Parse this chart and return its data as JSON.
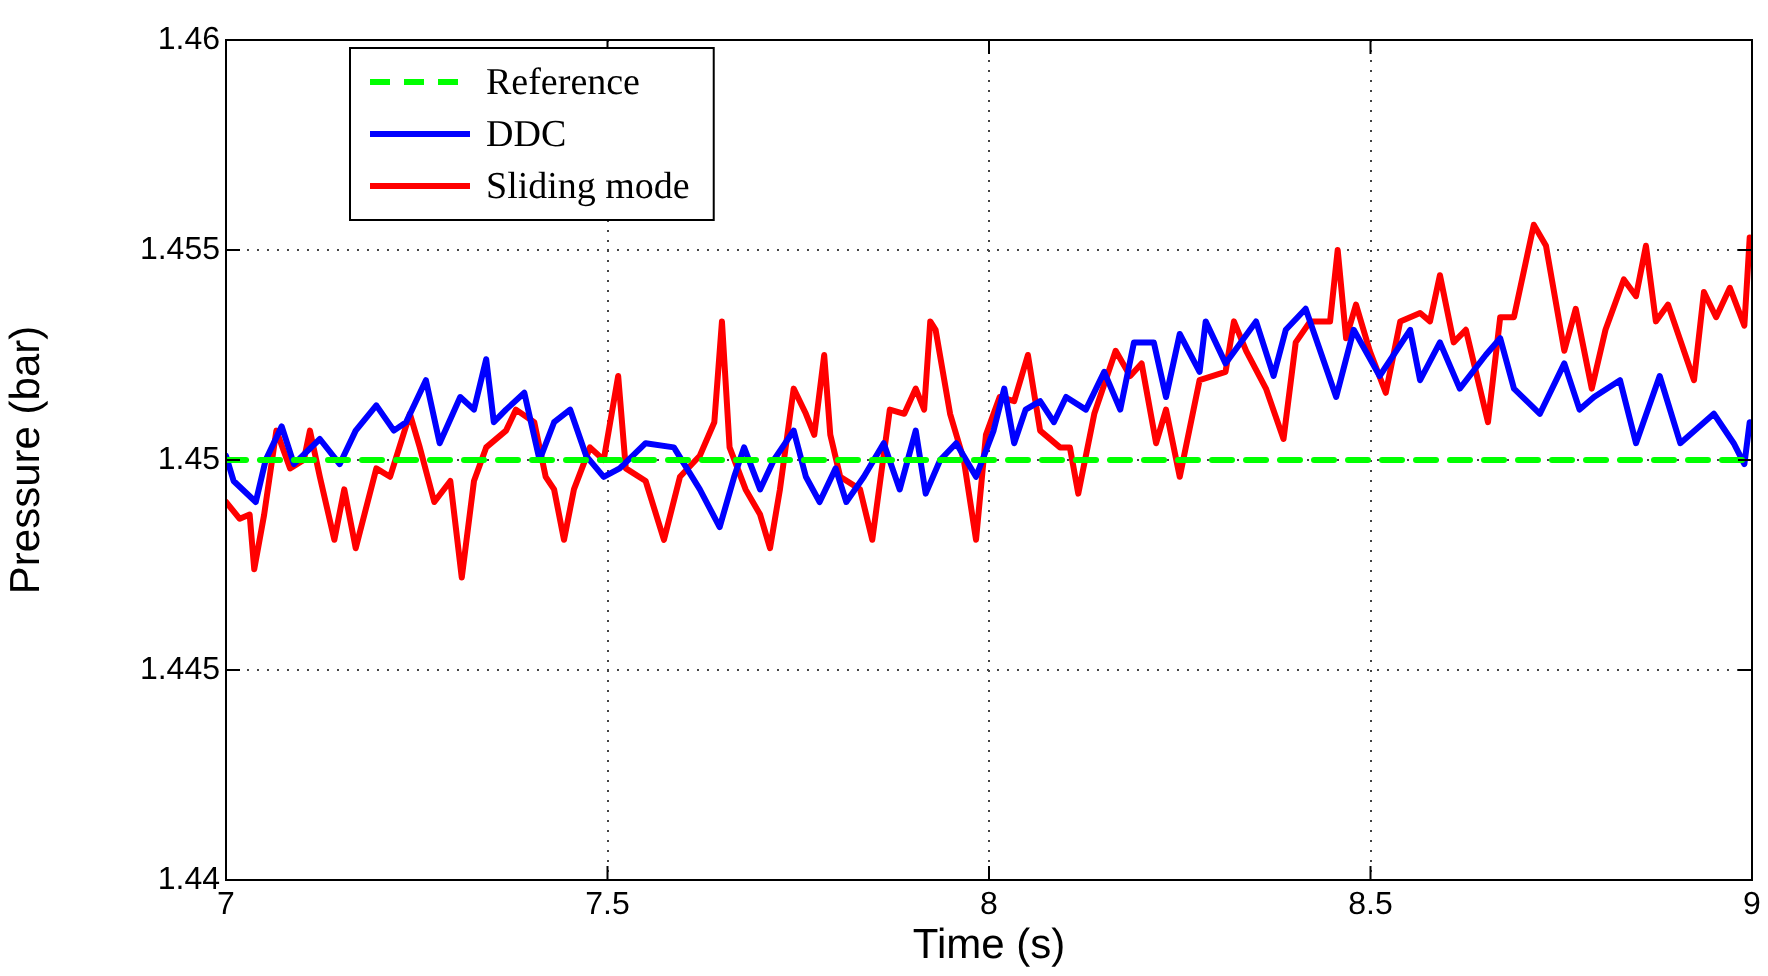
{
  "chart_data": {
    "type": "line",
    "xlabel": "Time (s)",
    "ylabel": "Pressure (bar)",
    "xlim": [
      7,
      9
    ],
    "xticks": [
      7,
      7.5,
      8,
      8.5,
      9
    ],
    "ylim": [
      1.44,
      1.46
    ],
    "yticks": [
      1.44,
      1.445,
      1.45,
      1.455,
      1.46
    ],
    "grid": true,
    "legend": "top left",
    "marker": "none",
    "series": [
      {
        "name": "Reference",
        "color": "#00ff00",
        "line_style": "dashed",
        "x": [
          7,
          9
        ],
        "values": [
          1.45,
          1.45
        ]
      },
      {
        "name": "DDC",
        "color": "#0000ff",
        "line_style": "solid",
        "x": [
          7.0,
          7.01,
          7.039,
          7.052,
          7.073,
          7.089,
          7.123,
          7.149,
          7.17,
          7.197,
          7.22,
          7.236,
          7.262,
          7.28,
          7.307,
          7.325,
          7.341,
          7.351,
          7.367,
          7.391,
          7.411,
          7.43,
          7.451,
          7.472,
          7.495,
          7.516,
          7.55,
          7.587,
          7.621,
          7.647,
          7.666,
          7.679,
          7.7,
          7.718,
          7.744,
          7.76,
          7.778,
          7.799,
          7.813,
          7.836,
          7.862,
          7.883,
          7.904,
          7.917,
          7.936,
          7.957,
          7.983,
          8.006,
          8.02,
          8.033,
          8.048,
          8.067,
          8.085,
          8.101,
          8.127,
          8.151,
          8.172,
          8.19,
          8.216,
          8.232,
          8.25,
          8.276,
          8.284,
          8.31,
          8.35,
          8.373,
          8.389,
          8.415,
          8.455,
          8.478,
          8.512,
          8.552,
          8.565,
          8.591,
          8.617,
          8.651,
          8.67,
          8.688,
          8.722,
          8.754,
          8.774,
          8.793,
          8.827,
          8.848,
          8.879,
          8.906,
          8.95,
          8.976,
          8.99,
          8.997
        ],
        "values": [
          1.4501,
          1.4495,
          1.449,
          1.45,
          1.4508,
          1.4499,
          1.4505,
          1.4499,
          1.4507,
          1.4513,
          1.4507,
          1.4509,
          1.4519,
          1.4504,
          1.4515,
          1.4512,
          1.4524,
          1.4509,
          1.4512,
          1.4516,
          1.45,
          1.4509,
          1.4512,
          1.4501,
          1.4496,
          1.4498,
          1.4504,
          1.4503,
          1.4493,
          1.4484,
          1.4496,
          1.4503,
          1.4493,
          1.45,
          1.4507,
          1.4496,
          1.449,
          1.4498,
          1.449,
          1.4496,
          1.4504,
          1.4493,
          1.4507,
          1.4492,
          1.45,
          1.4504,
          1.4496,
          1.4507,
          1.4517,
          1.4504,
          1.4512,
          1.4514,
          1.4509,
          1.4515,
          1.4512,
          1.4521,
          1.4512,
          1.4528,
          1.4528,
          1.4515,
          1.453,
          1.4521,
          1.4533,
          1.4523,
          1.4533,
          1.452,
          1.4531,
          1.4536,
          1.4515,
          1.4531,
          1.452,
          1.4531,
          1.4519,
          1.4528,
          1.4517,
          1.4525,
          1.4529,
          1.4517,
          1.4511,
          1.4523,
          1.4512,
          1.4515,
          1.4519,
          1.4504,
          1.452,
          1.4504,
          1.4511,
          1.4504,
          1.4499,
          1.4509
        ]
      },
      {
        "name": "Sliding mode",
        "color": "#ff0000",
        "line_style": "solid",
        "x": [
          7.0,
          7.018,
          7.031,
          7.037,
          7.05,
          7.066,
          7.084,
          7.102,
          7.11,
          7.123,
          7.142,
          7.155,
          7.17,
          7.197,
          7.215,
          7.241,
          7.254,
          7.273,
          7.294,
          7.309,
          7.325,
          7.341,
          7.367,
          7.38,
          7.404,
          7.419,
          7.43,
          7.443,
          7.456,
          7.477,
          7.495,
          7.514,
          7.524,
          7.55,
          7.574,
          7.595,
          7.621,
          7.64,
          7.65,
          7.66,
          7.681,
          7.7,
          7.713,
          7.726,
          7.744,
          7.76,
          7.771,
          7.784,
          7.792,
          7.805,
          7.831,
          7.847,
          7.87,
          7.889,
          7.904,
          7.915,
          7.923,
          7.93,
          7.949,
          7.967,
          7.983,
          7.996,
          8.014,
          8.033,
          8.051,
          8.067,
          8.093,
          8.106,
          8.117,
          8.138,
          8.166,
          8.185,
          8.2,
          8.219,
          8.232,
          8.25,
          8.276,
          8.31,
          8.321,
          8.337,
          8.363,
          8.386,
          8.402,
          8.421,
          8.447,
          8.457,
          8.468,
          8.481,
          8.499,
          8.52,
          8.539,
          8.565,
          8.578,
          8.591,
          8.609,
          8.625,
          8.654,
          8.67,
          8.688,
          8.714,
          8.73,
          8.754,
          8.769,
          8.79,
          8.808,
          8.832,
          8.848,
          8.861,
          8.874,
          8.89,
          8.924,
          8.937,
          8.953,
          8.971,
          8.99,
          8.997
        ],
        "values": [
          1.449,
          1.4486,
          1.4487,
          1.4474,
          1.4487,
          1.4507,
          1.4498,
          1.45,
          1.4507,
          1.4496,
          1.4481,
          1.4493,
          1.4479,
          1.4498,
          1.4496,
          1.4511,
          1.4503,
          1.449,
          1.4495,
          1.4472,
          1.4495,
          1.4503,
          1.4507,
          1.4512,
          1.4509,
          1.4496,
          1.4493,
          1.4481,
          1.4493,
          1.4503,
          1.45,
          1.452,
          1.4498,
          1.4495,
          1.4481,
          1.4496,
          1.4501,
          1.4509,
          1.4533,
          1.4503,
          1.4493,
          1.4487,
          1.4479,
          1.4493,
          1.4517,
          1.4511,
          1.4506,
          1.4525,
          1.4506,
          1.4496,
          1.4493,
          1.4481,
          1.4512,
          1.4511,
          1.4517,
          1.4512,
          1.4533,
          1.4531,
          1.4511,
          1.45,
          1.4481,
          1.4506,
          1.4515,
          1.4514,
          1.4525,
          1.4507,
          1.4503,
          1.4503,
          1.4492,
          1.4511,
          1.4526,
          1.452,
          1.4523,
          1.4504,
          1.4512,
          1.4496,
          1.4519,
          1.4521,
          1.4533,
          1.4526,
          1.4517,
          1.4505,
          1.4528,
          1.4533,
          1.4533,
          1.455,
          1.4529,
          1.4537,
          1.4526,
          1.4516,
          1.4533,
          1.4535,
          1.4533,
          1.4544,
          1.4528,
          1.4531,
          1.4509,
          1.4534,
          1.4534,
          1.4556,
          1.4551,
          1.4526,
          1.4536,
          1.4517,
          1.4531,
          1.4543,
          1.4539,
          1.4551,
          1.4533,
          1.4537,
          1.4519,
          1.454,
          1.4534,
          1.4541,
          1.4532,
          1.4553
        ]
      }
    ]
  }
}
